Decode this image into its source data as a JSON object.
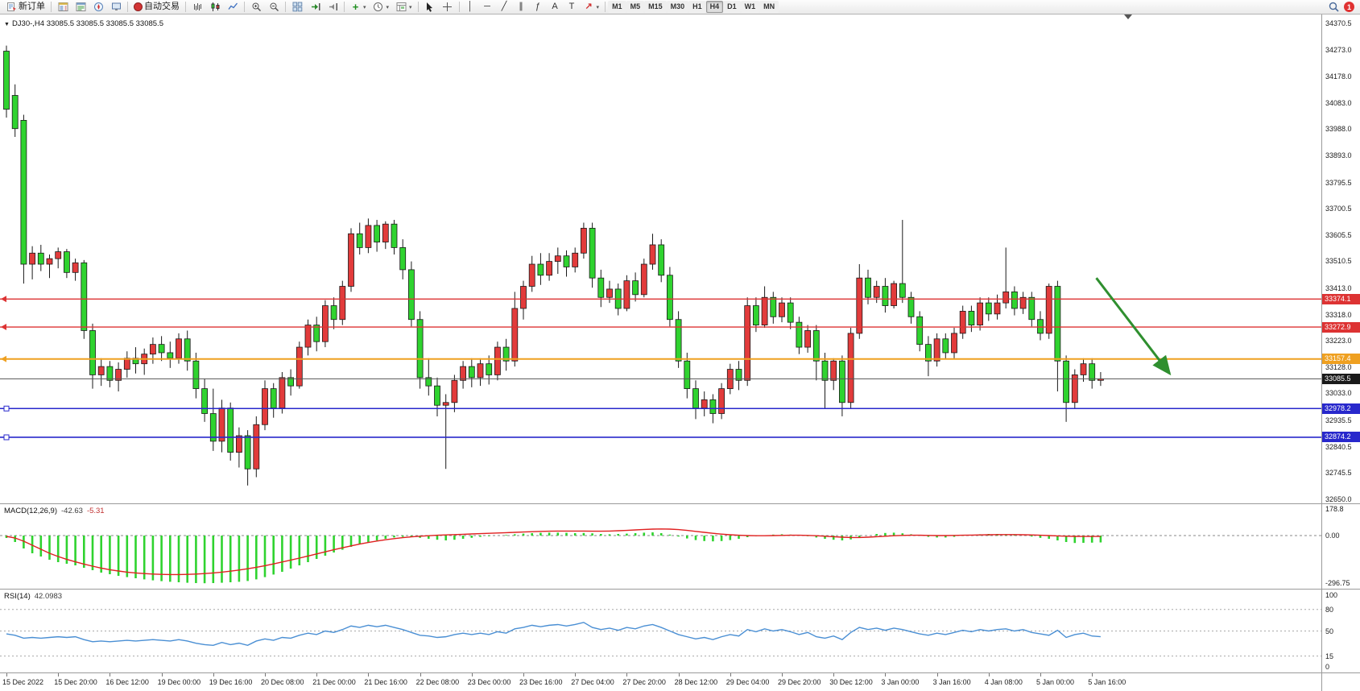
{
  "toolbar": {
    "new_order_label": "新订单",
    "autotrading_label": "自动交易",
    "timeframes": [
      "M1",
      "M5",
      "M15",
      "M30",
      "H1",
      "H4",
      "D1",
      "W1",
      "MN"
    ],
    "active_timeframe": "H4",
    "notification_count": "1",
    "icons": {
      "caret": "▾",
      "oct": "▼",
      "vline": "│",
      "hline": "─",
      "trendline": "╱",
      "channel": "∥",
      "fibonacci": "ƒ",
      "text_tool": "A",
      "label_tool": "T",
      "arrows_tool": "↗",
      "indicators_plus": "+"
    }
  },
  "chart_header": {
    "symbol_info": "DJ30-,H4 33085.5 33085.5 33085.5 33085.5"
  },
  "macd_panel": {
    "label": "MACD(12,26,9)",
    "value": "-42.63",
    "signal": "-5.31",
    "axis_ticks": [
      "178.8",
      "0.00",
      "-296.75"
    ]
  },
  "rsi_panel": {
    "label": "RSI(14)",
    "value": "42.0983",
    "axis_ticks": [
      "100",
      "80",
      "50",
      "15",
      "0"
    ]
  },
  "chart_data": {
    "type": "candlestick",
    "symbol": "DJ30-",
    "period": "H4",
    "ohlc_readout": [
      33085.5,
      33085.5,
      33085.5,
      33085.5
    ],
    "colors": {
      "bull": "#e23b3b",
      "bear": "#2fd32f",
      "outline": "#1a1a1a"
    },
    "price_axis": {
      "min": 32650.0,
      "max": 34370.5,
      "ticks": [
        34370.5,
        34273.0,
        34178.0,
        34083.0,
        33988.0,
        33893.0,
        33795.5,
        33700.5,
        33605.5,
        33510.5,
        33413.0,
        33318.0,
        33223.0,
        33128.0,
        33033.0,
        32935.5,
        32840.5,
        32745.5,
        32650.0
      ]
    },
    "time_labels": [
      "15 Dec 2022",
      "15 Dec 20:00",
      "16 Dec 12:00",
      "19 Dec 00:00",
      "19 Dec 16:00",
      "20 Dec 08:00",
      "21 Dec 00:00",
      "21 Dec 16:00",
      "22 Dec 08:00",
      "23 Dec 00:00",
      "23 Dec 16:00",
      "27 Dec 04:00",
      "27 Dec 20:00",
      "28 Dec 12:00",
      "29 Dec 04:00",
      "29 Dec 20:00",
      "30 Dec 12:00",
      "3 Jan 00:00",
      "3 Jan 16:00",
      "4 Jan 08:00",
      "5 Jan 00:00",
      "5 Jan 16:00"
    ],
    "bars_per_label": 6,
    "levels": [
      {
        "price": 33374.1,
        "label": "33374.1",
        "color": "#dd3333",
        "width": 1.4,
        "handle": "arrow"
      },
      {
        "price": 33272.9,
        "label": "33272.9",
        "color": "#dd3333",
        "width": 1.4,
        "handle": "arrow"
      },
      {
        "price": 33157.4,
        "label": "33157.4",
        "color": "#efa020",
        "width": 2,
        "handle": "arrow"
      },
      {
        "price": 33085.5,
        "label": "33085.5",
        "color": "#555555",
        "width": 1,
        "tag_bg": "#1a1a1a",
        "role": "current-price"
      },
      {
        "price": 32978.2,
        "label": "32978.2",
        "color": "#2828cc",
        "width": 1.6,
        "handle": "square"
      },
      {
        "price": 32874.2,
        "label": "32874.2",
        "color": "#2828cc",
        "width": 1.6,
        "handle": "square"
      }
    ],
    "trend_arrow": {
      "from_bar": 126.5,
      "from_price": 33450,
      "to_bar": 135,
      "to_price": 33105,
      "color": "#2f8f2f"
    },
    "candles": [
      [
        34270,
        34290,
        34030,
        34060
      ],
      [
        34110,
        34150,
        33960,
        33990
      ],
      [
        34020,
        34040,
        33430,
        33500
      ],
      [
        33500,
        33565,
        33445,
        33540
      ],
      [
        33540,
        33570,
        33475,
        33500
      ],
      [
        33500,
        33535,
        33450,
        33520
      ],
      [
        33520,
        33560,
        33485,
        33545
      ],
      [
        33545,
        33555,
        33450,
        33470
      ],
      [
        33470,
        33520,
        33440,
        33505
      ],
      [
        33505,
        33515,
        33230,
        33260
      ],
      [
        33260,
        33285,
        33050,
        33100
      ],
      [
        33100,
        33160,
        33060,
        33130
      ],
      [
        33130,
        33150,
        33055,
        33080
      ],
      [
        33080,
        33145,
        33040,
        33120
      ],
      [
        33120,
        33185,
        33090,
        33160
      ],
      [
        33160,
        33200,
        33105,
        33140
      ],
      [
        33140,
        33195,
        33100,
        33175
      ],
      [
        33175,
        33235,
        33140,
        33210
      ],
      [
        33210,
        33240,
        33150,
        33180
      ],
      [
        33180,
        33220,
        33125,
        33160
      ],
      [
        33160,
        33250,
        33140,
        33230
      ],
      [
        33230,
        33260,
        33115,
        33150
      ],
      [
        33150,
        33180,
        33015,
        33050
      ],
      [
        33050,
        33085,
        32930,
        32960
      ],
      [
        32960,
        33050,
        32825,
        32860
      ],
      [
        32860,
        33010,
        32820,
        32980
      ],
      [
        32980,
        33000,
        32790,
        32820
      ],
      [
        32820,
        32910,
        32765,
        32880
      ],
      [
        32880,
        32900,
        32700,
        32760
      ],
      [
        32760,
        32950,
        32730,
        32920
      ],
      [
        32920,
        33080,
        32900,
        33050
      ],
      [
        33050,
        33070,
        32945,
        32980
      ],
      [
        32980,
        33110,
        32960,
        33090
      ],
      [
        33090,
        33120,
        33025,
        33060
      ],
      [
        33060,
        33220,
        33050,
        33200
      ],
      [
        33200,
        33300,
        33170,
        33280
      ],
      [
        33280,
        33310,
        33185,
        33220
      ],
      [
        33220,
        33370,
        33200,
        33350
      ],
      [
        33350,
        33380,
        33265,
        33300
      ],
      [
        33300,
        33440,
        33280,
        33420
      ],
      [
        33420,
        33630,
        33400,
        33610
      ],
      [
        33610,
        33650,
        33535,
        33560
      ],
      [
        33560,
        33665,
        33540,
        33640
      ],
      [
        33640,
        33660,
        33545,
        33580
      ],
      [
        33580,
        33655,
        33555,
        33645
      ],
      [
        33645,
        33660,
        33535,
        33560
      ],
      [
        33560,
        33590,
        33445,
        33480
      ],
      [
        33480,
        33510,
        33275,
        33300
      ],
      [
        33300,
        33330,
        33050,
        33090
      ],
      [
        33090,
        33160,
        33025,
        33060
      ],
      [
        33060,
        33090,
        32950,
        32990
      ],
      [
        32990,
        33030,
        32760,
        33000
      ],
      [
        33000,
        33100,
        32965,
        33080
      ],
      [
        33080,
        33150,
        33050,
        33130
      ],
      [
        33130,
        33160,
        33055,
        33090
      ],
      [
        33090,
        33160,
        33060,
        33140
      ],
      [
        33140,
        33170,
        33065,
        33100
      ],
      [
        33100,
        33220,
        33080,
        33200
      ],
      [
        33200,
        33230,
        33115,
        33150
      ],
      [
        33150,
        33400,
        33130,
        33340
      ],
      [
        33340,
        33440,
        33300,
        33420
      ],
      [
        33420,
        33530,
        33400,
        33500
      ],
      [
        33500,
        33540,
        33425,
        33460
      ],
      [
        33460,
        33540,
        33440,
        33510
      ],
      [
        33510,
        33560,
        33465,
        33530
      ],
      [
        33530,
        33550,
        33455,
        33490
      ],
      [
        33490,
        33560,
        33470,
        33540
      ],
      [
        33540,
        33650,
        33520,
        33630
      ],
      [
        33630,
        33650,
        33415,
        33450
      ],
      [
        33450,
        33480,
        33345,
        33380
      ],
      [
        33380,
        33440,
        33360,
        33410
      ],
      [
        33410,
        33430,
        33315,
        33340
      ],
      [
        33340,
        33460,
        33330,
        33440
      ],
      [
        33440,
        33470,
        33365,
        33390
      ],
      [
        33390,
        33520,
        33380,
        33500
      ],
      [
        33500,
        33610,
        33480,
        33570
      ],
      [
        33570,
        33590,
        33435,
        33460
      ],
      [
        33460,
        33490,
        33275,
        33300
      ],
      [
        33300,
        33330,
        33125,
        33150
      ],
      [
        33150,
        33180,
        33015,
        33050
      ],
      [
        33050,
        33080,
        32940,
        32980
      ],
      [
        32980,
        33040,
        32950,
        33010
      ],
      [
        33010,
        33030,
        32925,
        32960
      ],
      [
        32960,
        33070,
        32940,
        33050
      ],
      [
        33050,
        33140,
        33030,
        33120
      ],
      [
        33120,
        33150,
        33045,
        33080
      ],
      [
        33080,
        33380,
        33060,
        33350
      ],
      [
        33350,
        33380,
        33255,
        33280
      ],
      [
        33280,
        33420,
        33270,
        33380
      ],
      [
        33380,
        33400,
        33285,
        33310
      ],
      [
        33310,
        33380,
        33290,
        33360
      ],
      [
        33360,
        33380,
        33265,
        33290
      ],
      [
        33290,
        33310,
        33175,
        33200
      ],
      [
        33200,
        33280,
        33180,
        33260
      ],
      [
        33260,
        33280,
        33080,
        33150
      ],
      [
        33150,
        33180,
        32980,
        33080
      ],
      [
        33080,
        33160,
        33045,
        33150
      ],
      [
        33150,
        33170,
        32950,
        33000
      ],
      [
        33000,
        33270,
        32980,
        33250
      ],
      [
        33250,
        33500,
        33230,
        33450
      ],
      [
        33450,
        33480,
        33355,
        33380
      ],
      [
        33380,
        33440,
        33360,
        33420
      ],
      [
        33420,
        33450,
        33325,
        33350
      ],
      [
        33350,
        33440,
        33340,
        33430
      ],
      [
        33430,
        33660,
        33360,
        33380
      ],
      [
        33380,
        33400,
        33285,
        33310
      ],
      [
        33310,
        33330,
        33185,
        33210
      ],
      [
        33210,
        33240,
        33095,
        33150
      ],
      [
        33150,
        33250,
        33130,
        33230
      ],
      [
        33230,
        33250,
        33155,
        33180
      ],
      [
        33180,
        33270,
        33160,
        33250
      ],
      [
        33250,
        33350,
        33230,
        33330
      ],
      [
        33330,
        33350,
        33255,
        33280
      ],
      [
        33280,
        33380,
        33260,
        33360
      ],
      [
        33360,
        33380,
        33295,
        33320
      ],
      [
        33320,
        33390,
        33300,
        33360
      ],
      [
        33360,
        33560,
        33340,
        33400
      ],
      [
        33400,
        33420,
        33315,
        33340
      ],
      [
        33340,
        33400,
        33320,
        33380
      ],
      [
        33380,
        33400,
        33275,
        33300
      ],
      [
        33300,
        33330,
        33225,
        33250
      ],
      [
        33250,
        33430,
        33230,
        33420
      ],
      [
        33420,
        33440,
        33040,
        33150
      ],
      [
        33150,
        33170,
        32930,
        33000
      ],
      [
        33000,
        33120,
        32980,
        33100
      ],
      [
        33100,
        33160,
        33075,
        33140
      ],
      [
        33140,
        33160,
        33050,
        33080
      ],
      [
        33080,
        33110,
        33060,
        33085.5
      ]
    ],
    "macd": {
      "hist_color": "#2fd32f",
      "signal_color": "#e02020",
      "axis_ticks": [
        178.8,
        0,
        -296.75
      ],
      "histogram": [
        -15,
        -40,
        -80,
        -110,
        -130,
        -150,
        -165,
        -175,
        -185,
        -200,
        -215,
        -230,
        -240,
        -250,
        -258,
        -265,
        -272,
        -278,
        -283,
        -287,
        -290,
        -293,
        -295,
        -296,
        -295,
        -293,
        -290,
        -287,
        -282,
        -272,
        -258,
        -242,
        -225,
        -205,
        -185,
        -165,
        -145,
        -125,
        -105,
        -88,
        -70,
        -55,
        -42,
        -30,
        -20,
        -12,
        -8,
        -10,
        -14,
        -20,
        -26,
        -30,
        -26,
        -20,
        -14,
        -8,
        -4,
        0,
        4,
        8,
        12,
        15,
        17,
        18,
        18,
        17,
        15,
        16,
        14,
        10,
        8,
        10,
        12,
        15,
        18,
        20,
        15,
        6,
        -6,
        -18,
        -28,
        -34,
        -36,
        -34,
        -28,
        -20,
        -10,
        -4,
        2,
        6,
        8,
        6,
        2,
        -4,
        -12,
        -20,
        -26,
        -30,
        -24,
        -12,
        0,
        10,
        16,
        18,
        14,
        8,
        0,
        -8,
        -12,
        -12,
        -8,
        -2,
        4,
        8,
        10,
        10,
        8,
        4,
        0,
        -6,
        -14,
        -20,
        -30,
        -40,
        -46,
        -45,
        -44,
        -42.63
      ],
      "signal_line": [
        -5,
        -15,
        -35,
        -60,
        -85,
        -110,
        -130,
        -148,
        -163,
        -177,
        -190,
        -202,
        -212,
        -220,
        -227,
        -232,
        -236,
        -239,
        -241,
        -242,
        -242,
        -241,
        -239,
        -236,
        -232,
        -227,
        -221,
        -214,
        -206,
        -197,
        -187,
        -176,
        -164,
        -152,
        -140,
        -127,
        -114,
        -101,
        -88,
        -76,
        -64,
        -53,
        -43,
        -34,
        -26,
        -19,
        -13,
        -8,
        -4,
        -1,
        2,
        4,
        6,
        8,
        10,
        12,
        14,
        16,
        18,
        20,
        22,
        24,
        26,
        27,
        28,
        28,
        28,
        28,
        27,
        27,
        28,
        30,
        32,
        35,
        38,
        40,
        41,
        40,
        37,
        32,
        26,
        20,
        14,
        9,
        5,
        2,
        0,
        -1,
        -1,
        0,
        1,
        2,
        2,
        1,
        -1,
        -4,
        -7,
        -10,
        -12,
        -12,
        -10,
        -7,
        -4,
        -1,
        1,
        2,
        2,
        1,
        0,
        0,
        1,
        2,
        3,
        4,
        5,
        6,
        6,
        6,
        5,
        4,
        2,
        0,
        -2,
        -4,
        -5,
        -5.5,
        -5.4,
        -5.31
      ]
    },
    "rsi": {
      "color": "#4a8fd4",
      "levels": [
        80,
        50,
        15
      ],
      "axis_ticks": [
        100,
        80,
        50,
        15,
        0
      ],
      "values": [
        46,
        44,
        40,
        41,
        40,
        41,
        42,
        41,
        42,
        38,
        35,
        36,
        35,
        36,
        37,
        36,
        37,
        38,
        37,
        36,
        38,
        36,
        33,
        31,
        30,
        34,
        31,
        33,
        30,
        36,
        39,
        37,
        41,
        40,
        44,
        47,
        45,
        50,
        48,
        52,
        57,
        55,
        58,
        56,
        58,
        55,
        52,
        48,
        44,
        43,
        41,
        42,
        45,
        47,
        45,
        47,
        45,
        49,
        47,
        53,
        55,
        58,
        56,
        58,
        59,
        57,
        59,
        62,
        55,
        52,
        54,
        51,
        55,
        53,
        57,
        59,
        55,
        50,
        45,
        42,
        39,
        41,
        38,
        42,
        45,
        43,
        52,
        49,
        53,
        50,
        52,
        49,
        45,
        48,
        42,
        40,
        43,
        38,
        48,
        55,
        52,
        54,
        51,
        54,
        52,
        49,
        46,
        44,
        47,
        45,
        48,
        51,
        49,
        52,
        50,
        52,
        53,
        50,
        52,
        48,
        46,
        44,
        51,
        41,
        45,
        47,
        43,
        42.1
      ]
    }
  }
}
